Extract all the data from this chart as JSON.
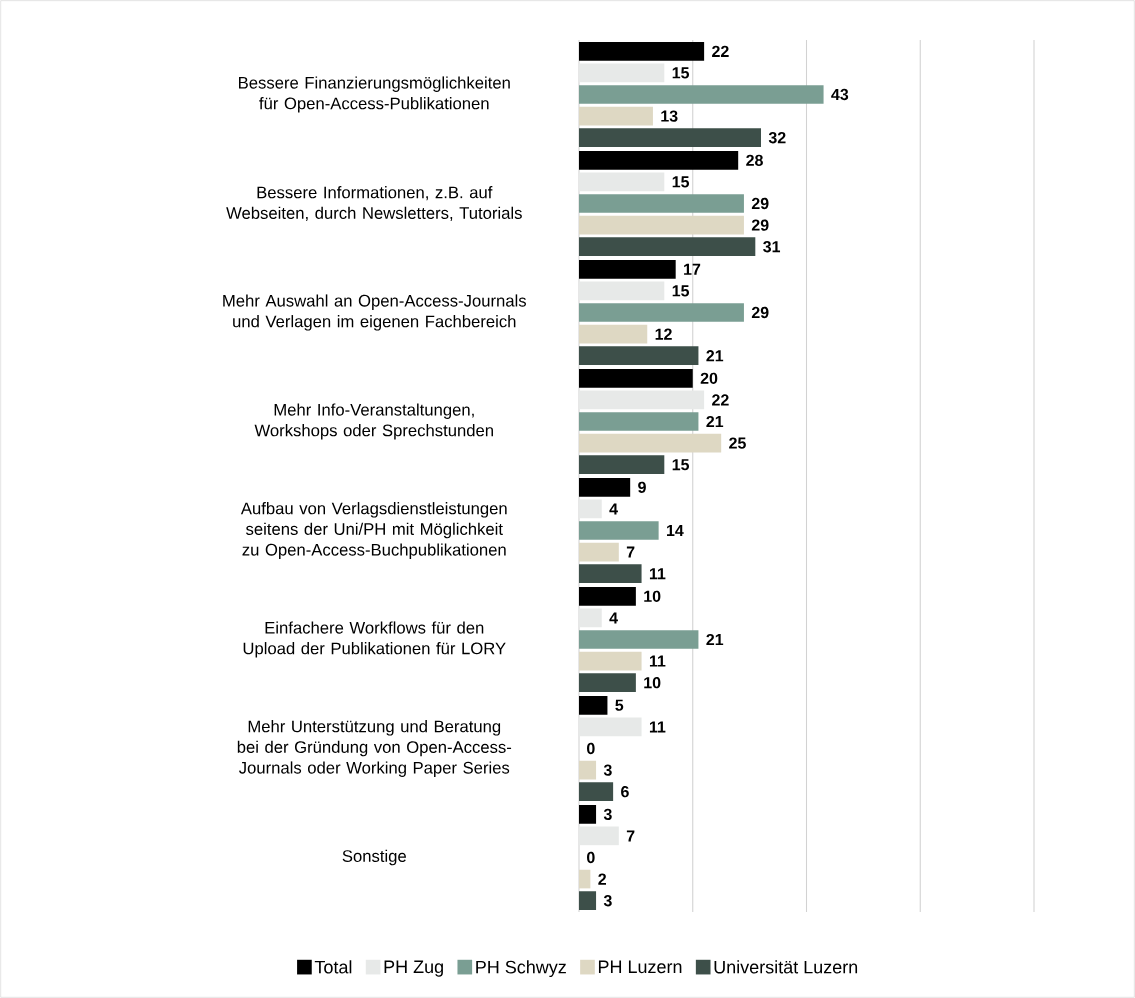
{
  "chart_data": {
    "type": "bar",
    "orientation": "horizontal",
    "categories": [
      "Bessere Finanzierungsmöglichkeiten für Open-Access-Publikationen",
      "Bessere Informationen, z.B. auf Webseiten, durch Newsletters, Tutorials",
      "Mehr Auswahl an Open-Access-Journals und Verlagen im eigenen Fachbereich",
      "Mehr Info-Veranstaltungen, Workshops oder Sprechstunden",
      "Aufbau von Verlagsdienstleistungen seitens der Uni/PH mit Möglichkeit zu Open-Access-Buchpublikationen",
      "Einfachere Workflows für den Upload der Publikationen für LORY",
      "Mehr Unterstützung und Beratung bei der Gründung von Open-Access-Journals oder Working Paper Series",
      "Sonstige"
    ],
    "series": [
      {
        "name": "Total",
        "color": "#000000",
        "values": [
          22,
          28,
          17,
          20,
          9,
          10,
          5,
          3
        ]
      },
      {
        "name": "PH Zug",
        "color": "#e7e9e8",
        "values": [
          15,
          15,
          15,
          22,
          4,
          4,
          11,
          7
        ]
      },
      {
        "name": "PH Schwyz",
        "color": "#7a9e93",
        "values": [
          43,
          29,
          29,
          21,
          14,
          21,
          0,
          0
        ]
      },
      {
        "name": "PH Luzern",
        "color": "#ded8c3",
        "values": [
          13,
          29,
          12,
          25,
          7,
          11,
          3,
          2
        ]
      },
      {
        "name": "Universität Luzern",
        "color": "#3d4f49",
        "values": [
          32,
          31,
          21,
          15,
          11,
          10,
          6,
          3
        ]
      }
    ],
    "xlim": [
      0,
      80
    ],
    "xticks": [
      {
        "value": 0,
        "label": null
      },
      {
        "value": 20,
        "label": null
      },
      {
        "value": 40,
        "label": null
      },
      {
        "value": 60,
        "label": null
      },
      {
        "value": 80,
        "label": null
      }
    ],
    "tick_labels": "y",
    "grid": "x",
    "data_labels": true,
    "legend": "bottom"
  }
}
